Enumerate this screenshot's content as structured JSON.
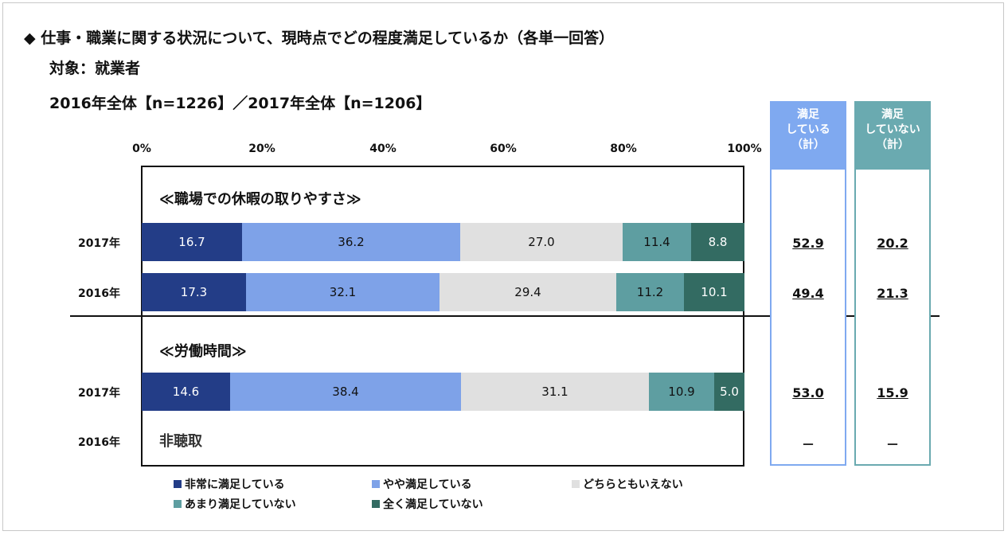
{
  "header": {
    "line1": "◆ 仕事・職業に関する状況について、現時点でどの程度満足しているか（各単一回答）",
    "line2": "対象：就業者",
    "line3": "2016年全体【n=1226】／2017年全体【n=1206】"
  },
  "summary_headers": {
    "satisfied": [
      "満足",
      "している",
      "（計）"
    ],
    "not_satisfied": [
      "満足",
      "していない",
      "（計）"
    ]
  },
  "no_data_label": "非聴取",
  "colors": {
    "very_satisfied": "#233d87",
    "somewhat_satisfied": "#7ea2e8",
    "neutral": "#e0e0e0",
    "not_very": "#5e9ea1",
    "not_at_all": "#336b62",
    "satisfied_col": "#7fa9f0",
    "not_satisfied_col": "#6aaab0"
  },
  "chart_data": {
    "type": "bar",
    "orientation": "horizontal-stacked-100",
    "xlim": [
      0,
      100
    ],
    "x_ticks": [
      "0%",
      "20%",
      "40%",
      "60%",
      "80%",
      "100%"
    ],
    "legend": [
      "非常に満足している",
      "やや満足している",
      "どちらともいえない",
      "あまり満足していない",
      "全く満足していない"
    ],
    "legend_placement": "bottom",
    "sections": [
      {
        "title": "≪職場での休暇の取りやすさ≫",
        "rows": [
          {
            "label": "2017年",
            "values": [
              16.7,
              36.2,
              27.0,
              11.4,
              8.8
            ],
            "labels": [
              "16.7",
              "36.2",
              "27.0",
              "11.4",
              "8.8"
            ],
            "satisfied_total": "52.9",
            "not_satisfied_total": "20.2"
          },
          {
            "label": "2016年",
            "values": [
              17.3,
              32.1,
              29.4,
              11.2,
              10.1
            ],
            "labels": [
              "17.3",
              "32.1",
              "29.4",
              "11.2",
              "10.1"
            ],
            "satisfied_total": "49.4",
            "not_satisfied_total": "21.3"
          }
        ]
      },
      {
        "title": "≪労働時間≫",
        "rows": [
          {
            "label": "2017年",
            "values": [
              14.6,
              38.4,
              31.1,
              10.9,
              5.0
            ],
            "labels": [
              "14.6",
              "38.4",
              "31.1",
              "10.9",
              "5.0"
            ],
            "satisfied_total": "53.0",
            "not_satisfied_total": "15.9"
          },
          {
            "label": "2016年",
            "values": null,
            "labels": null,
            "satisfied_total": "－",
            "not_satisfied_total": "－"
          }
        ]
      }
    ]
  }
}
